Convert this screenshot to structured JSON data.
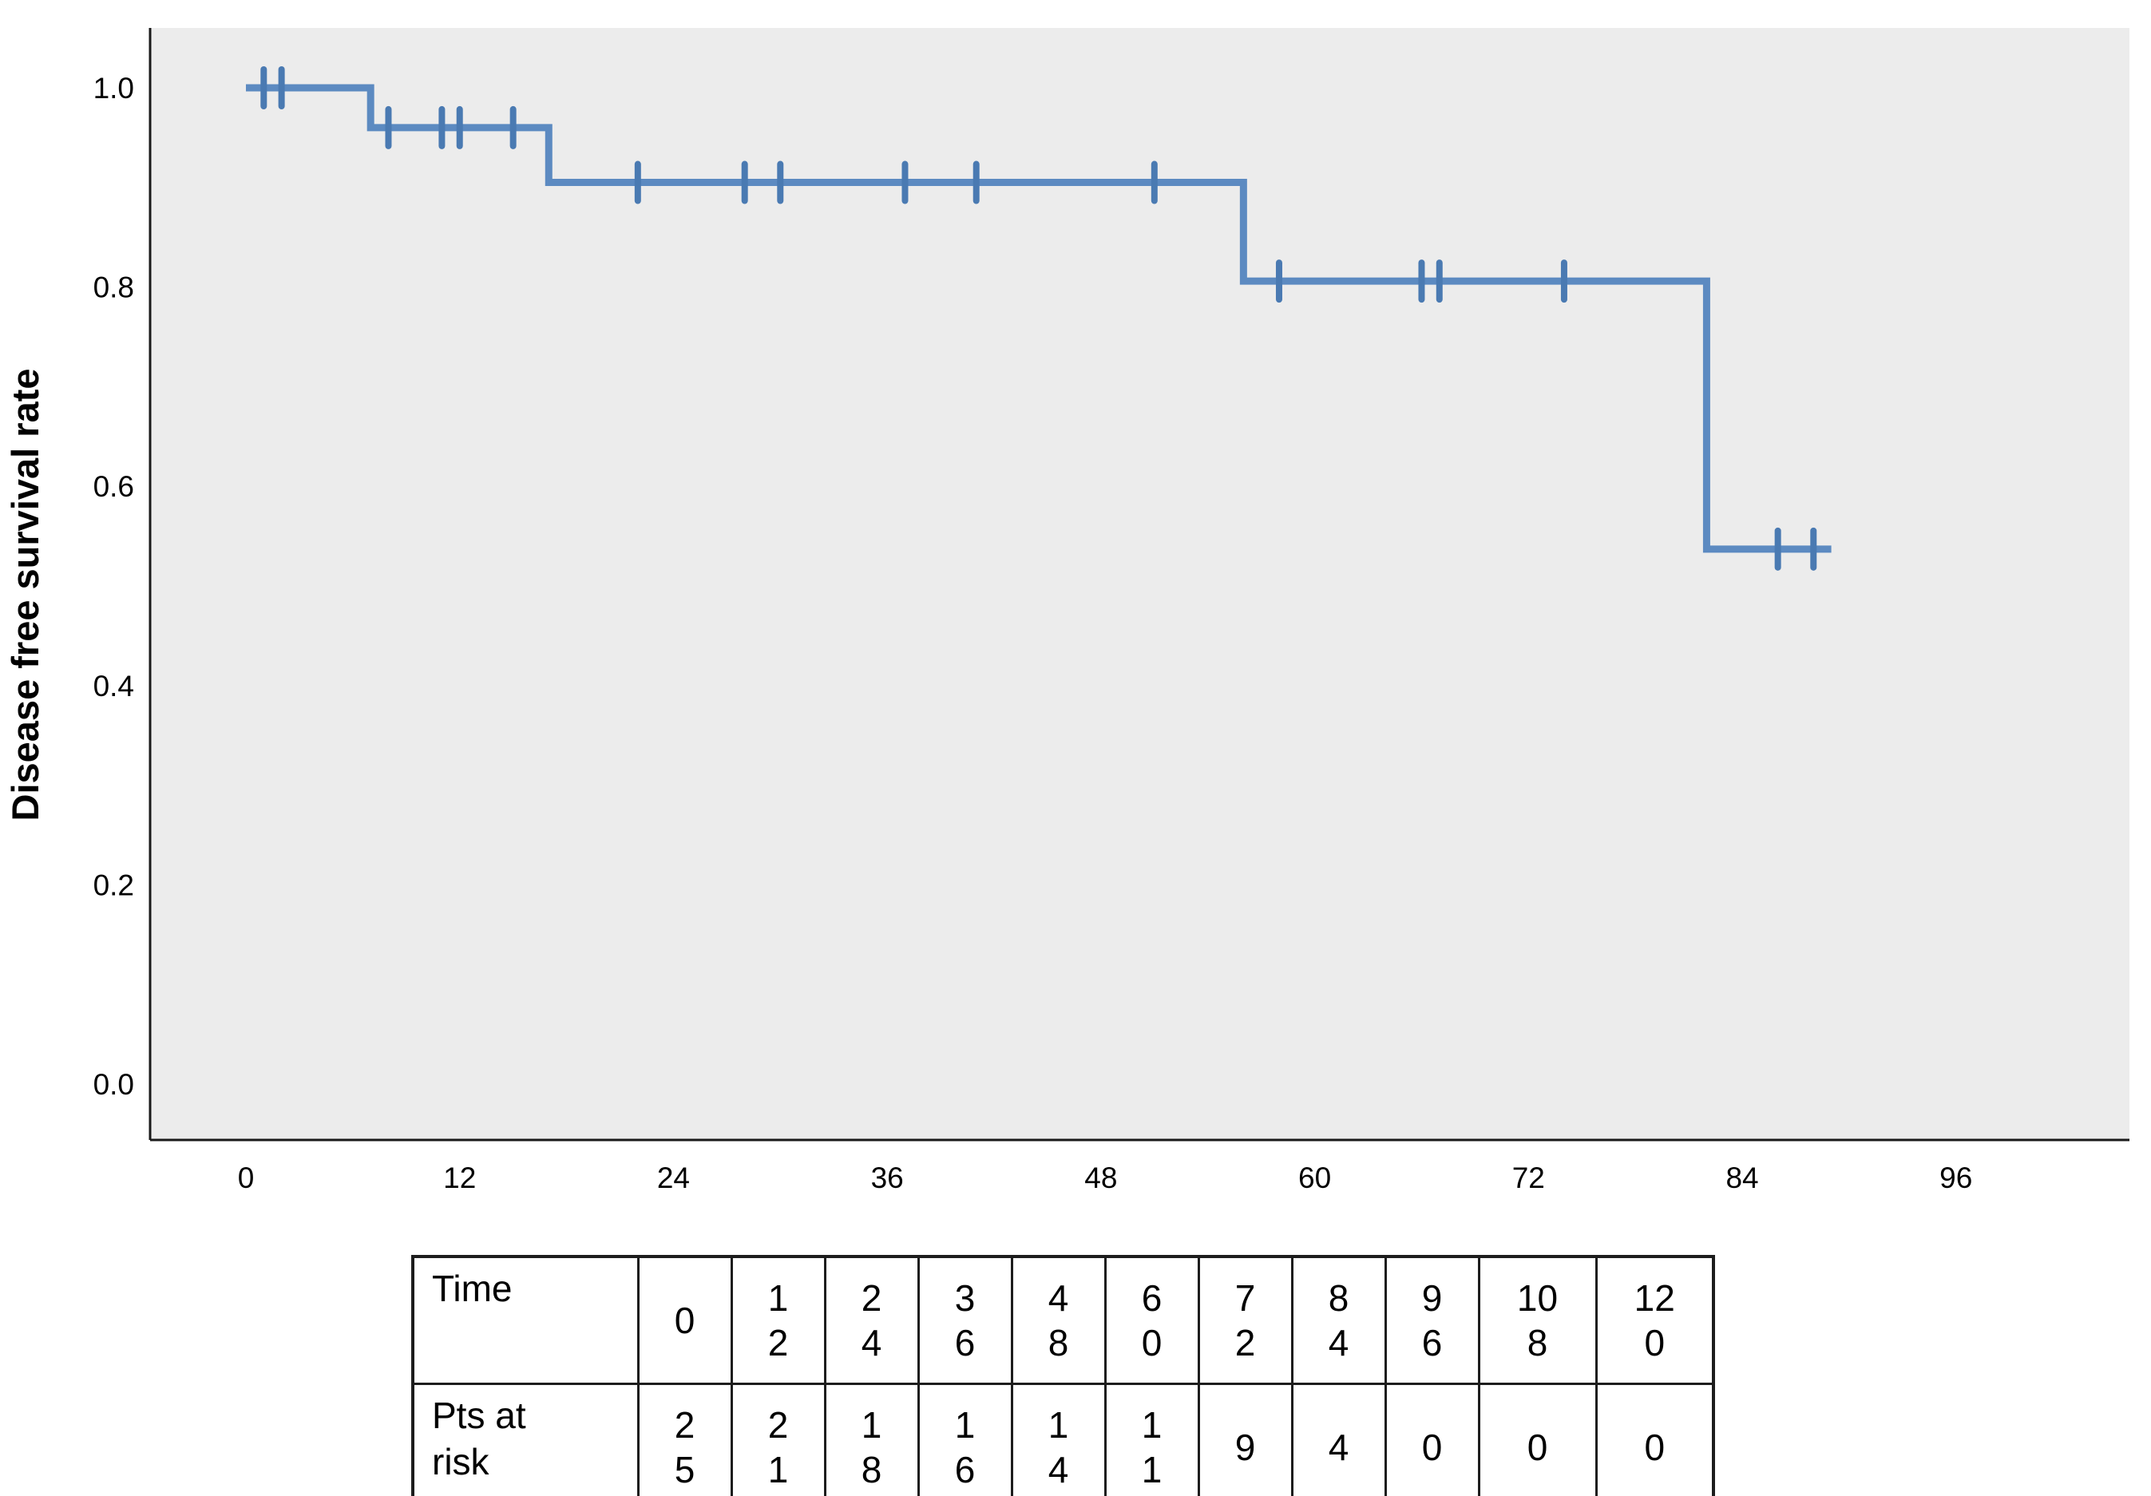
{
  "figure": {
    "background": "#ffffff",
    "plot_bg": "#ececec",
    "axis_color": "#1a1a1a"
  },
  "chart_data": {
    "type": "line",
    "subtype": "kaplan-meier-step-curve",
    "title": "",
    "xlabel": "",
    "ylabel": "Disease free survival rate",
    "grid": false,
    "legend": "none",
    "xlim": [
      -5.4,
      105.8
    ],
    "ylim": [
      -0.05,
      1.06
    ],
    "x_ticks": [
      0,
      12,
      24,
      36,
      48,
      60,
      72,
      84,
      96
    ],
    "y_ticks": [
      "1.0",
      "0.8",
      "0.6",
      "0.4",
      "0.2",
      "0.0"
    ],
    "line_color": "#5c8ac1",
    "censor_color": "#4a7ab2",
    "series": [
      {
        "name": "Disease free survival",
        "steps": [
          {
            "t": 0,
            "s": 1.0
          },
          {
            "t": 7,
            "s": 0.96
          },
          {
            "t": 17,
            "s": 0.905
          },
          {
            "t": 56,
            "s": 0.806
          },
          {
            "t": 82,
            "s": 0.537
          }
        ],
        "end_t": 89,
        "censors": [
          {
            "t": 1,
            "s": 1.0
          },
          {
            "t": 2,
            "s": 1.0
          },
          {
            "t": 8,
            "s": 0.96
          },
          {
            "t": 11,
            "s": 0.96
          },
          {
            "t": 12,
            "s": 0.96
          },
          {
            "t": 15,
            "s": 0.96
          },
          {
            "t": 22,
            "s": 0.905
          },
          {
            "t": 28,
            "s": 0.905
          },
          {
            "t": 30,
            "s": 0.905
          },
          {
            "t": 37,
            "s": 0.905
          },
          {
            "t": 41,
            "s": 0.905
          },
          {
            "t": 51,
            "s": 0.905
          },
          {
            "t": 58,
            "s": 0.806
          },
          {
            "t": 66,
            "s": 0.806
          },
          {
            "t": 67,
            "s": 0.806
          },
          {
            "t": 74,
            "s": 0.806
          },
          {
            "t": 86,
            "s": 0.537
          },
          {
            "t": 88,
            "s": 0.537
          }
        ]
      }
    ],
    "risk_table": {
      "row1_label": "Time",
      "row2_label": "Pts at risk",
      "times": [
        0,
        12,
        24,
        36,
        48,
        60,
        72,
        84,
        96,
        108,
        120
      ],
      "pts_at_risk": [
        25,
        21,
        18,
        16,
        14,
        11,
        9,
        4,
        0,
        0,
        0
      ]
    }
  }
}
